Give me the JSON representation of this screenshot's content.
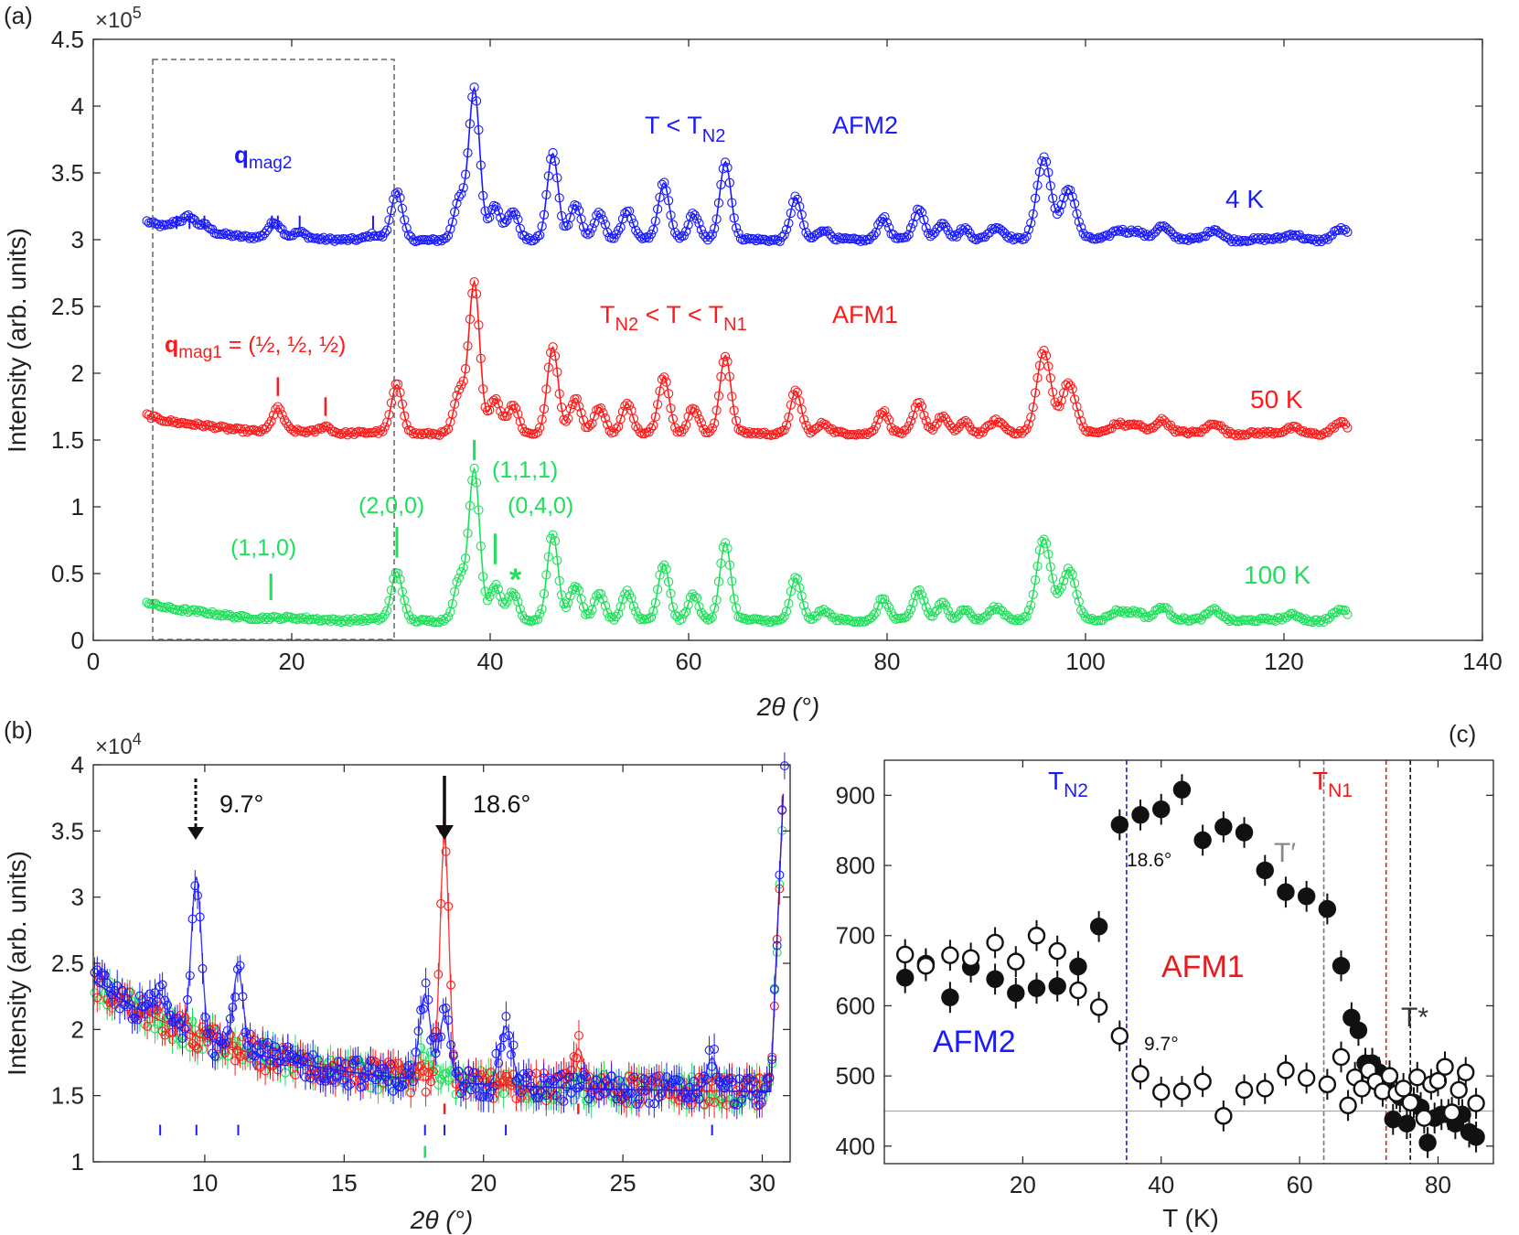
{
  "chart_data": [
    {
      "panel": "(a)",
      "type": "scatter",
      "xlabel": "2θ (°)",
      "ylabel": "Intensity (arb. units)",
      "y_multiplier": "×10",
      "y_multiplier_exp": "5",
      "xlim": [
        0,
        140
      ],
      "ylim": [
        0,
        4.5
      ],
      "xticks": [
        0,
        20,
        40,
        60,
        80,
        100,
        120,
        140
      ],
      "yticks": [
        0,
        0.5,
        1,
        1.5,
        2,
        2.5,
        3,
        3.5,
        4,
        4.5
      ],
      "series": [
        {
          "name": "4 K",
          "color": "#1a1aff",
          "baseline": 3.0,
          "offset": 2.85
        },
        {
          "name": "50 K",
          "color": "#ff1a1a",
          "baseline": 1.55,
          "offset": 1.4
        },
        {
          "name": "100 K",
          "color": "#1ee05a",
          "baseline": 0.15,
          "offset": 0.0
        }
      ],
      "peaks": [
        {
          "x": 30.6,
          "h": 0.36
        },
        {
          "x": 36.9,
          "h": 0.3
        },
        {
          "x": 38.4,
          "h": 1.12
        },
        {
          "x": 40.5,
          "h": 0.26
        },
        {
          "x": 42.3,
          "h": 0.22
        },
        {
          "x": 46.3,
          "h": 0.64
        },
        {
          "x": 48.6,
          "h": 0.26
        },
        {
          "x": 51.0,
          "h": 0.2
        },
        {
          "x": 53.8,
          "h": 0.22
        },
        {
          "x": 57.5,
          "h": 0.42
        },
        {
          "x": 60.5,
          "h": 0.2
        },
        {
          "x": 63.7,
          "h": 0.58
        },
        {
          "x": 70.8,
          "h": 0.32
        },
        {
          "x": 73.6,
          "h": 0.07
        },
        {
          "x": 79.6,
          "h": 0.17
        },
        {
          "x": 83.2,
          "h": 0.22
        },
        {
          "x": 85.6,
          "h": 0.13
        },
        {
          "x": 87.8,
          "h": 0.09
        },
        {
          "x": 91.0,
          "h": 0.09
        },
        {
          "x": 95.8,
          "h": 0.62
        },
        {
          "x": 98.3,
          "h": 0.38
        },
        {
          "x": 103.3,
          "h": 0.07
        },
        {
          "x": 105.1,
          "h": 0.07
        },
        {
          "x": 107.7,
          "h": 0.1
        },
        {
          "x": 113.0,
          "h": 0.08
        },
        {
          "x": 121.0,
          "h": 0.04
        },
        {
          "x": 125.7,
          "h": 0.08
        }
      ],
      "magnetic_peaks_50K": [
        {
          "x": 18.6,
          "h": 0.17
        },
        {
          "x": 23.4,
          "h": 0.05
        }
      ],
      "magnetic_peaks_4K": [
        {
          "x": 8.4,
          "h": 0.05
        },
        {
          "x": 9.7,
          "h": 0.1
        },
        {
          "x": 11.2,
          "h": 0.05
        },
        {
          "x": 18.0,
          "h": 0.07
        },
        {
          "x": 18.6,
          "h": 0.06
        },
        {
          "x": 20.8,
          "h": 0.04
        },
        {
          "x": 28.2,
          "h": 0.03
        }
      ],
      "ticks_4K": [
        8.4,
        9.7,
        11.2,
        18.0,
        18.6,
        20.8,
        28.2
      ],
      "ticks_50K": [
        18.6,
        23.4
      ],
      "ticks_100K": [
        {
          "x": 17.9,
          "label": "(1,1,0)"
        },
        {
          "x": 30.6,
          "label": "(2,0,0)"
        },
        {
          "x": 38.4,
          "label": "(1,1,1)"
        },
        {
          "x": 40.5,
          "label": "(0,4,0)"
        }
      ],
      "annotations": {
        "panel_label": "(a)",
        "t_lt_tn2_main": "T < T",
        "t_lt_tn2_sub": "N2",
        "afm2": "AFM2",
        "temp_4k": "4 K",
        "qmag2_main": "q",
        "qmag2_sub": "mag2",
        "tn2_sym": "T",
        "tn2_sub": "N2",
        "tn2_mid": " < T < T",
        "tn1_sub": "N1",
        "afm1": "AFM1",
        "qmag1_main": "q",
        "qmag1_sub": "mag1",
        "qmag1_val": " = (½, ½, ½)",
        "temp_50k": "50 K",
        "hkl_111": "(1,1,1)",
        "hkl_200": "(2,0,0)",
        "hkl_040": "(0,4,0)",
        "hkl_110": "(1,1,0)",
        "star": "*",
        "temp_100k": "100 K"
      }
    },
    {
      "panel": "(b)",
      "type": "scatter",
      "xlabel": "2θ (°)",
      "ylabel": "Intensity (arb. units)",
      "y_multiplier": "×10",
      "y_multiplier_exp": "4",
      "xlim": [
        6,
        31
      ],
      "ylim": [
        1,
        4
      ],
      "xticks": [
        10,
        15,
        20,
        25,
        30
      ],
      "yticks": [
        1,
        1.5,
        2,
        2.5,
        3,
        3.5,
        4
      ],
      "series": [
        {
          "name": "4 K",
          "color": "#1a1aff"
        },
        {
          "name": "50 K",
          "color": "#ff1a1a"
        },
        {
          "name": "100 K",
          "color": "#1ee05a"
        }
      ],
      "ticks_blue": [
        8.4,
        9.7,
        11.2,
        17.9,
        18.6,
        20.8,
        28.2
      ],
      "ticks_red": [
        18.6,
        23.4
      ],
      "ticks_green": [
        17.9
      ],
      "annotations": {
        "panel_label": "(b)",
        "arrow1": "9.7°",
        "arrow2": "18.6°"
      }
    },
    {
      "panel": "(c)",
      "type": "scatter",
      "xlabel": "T (K)",
      "ylabel": "",
      "xlim": [
        0,
        88
      ],
      "ylim": [
        375,
        950
      ],
      "xticks": [
        20,
        40,
        60,
        80
      ],
      "yticks": [
        400,
        500,
        600,
        700,
        800,
        900
      ],
      "hline": 450,
      "vlines": [
        {
          "x": 35,
          "color": "#1a1aff"
        },
        {
          "x": 63.5,
          "color": "#777777"
        },
        {
          "x": 72.5,
          "color": "#e81a1a"
        },
        {
          "x": 76,
          "color": "#111111"
        }
      ],
      "series": [
        {
          "name": "18.6°",
          "filled": true,
          "points": [
            [
              3,
              640
            ],
            [
              6,
              660
            ],
            [
              9.5,
              612
            ],
            [
              12.5,
              655
            ],
            [
              16,
              638
            ],
            [
              19,
              618
            ],
            [
              22,
              625
            ],
            [
              25,
              628
            ],
            [
              28,
              656
            ],
            [
              31,
              713
            ],
            [
              34,
              858
            ],
            [
              37,
              872
            ],
            [
              40,
              880
            ],
            [
              43,
              908
            ],
            [
              46,
              836
            ],
            [
              49,
              855
            ],
            [
              52,
              847
            ],
            [
              55,
              793
            ],
            [
              58,
              762
            ],
            [
              61,
              756
            ],
            [
              64,
              738
            ],
            [
              66,
              657
            ],
            [
              67.5,
              583
            ],
            [
              68.5,
              565
            ],
            [
              69.5,
              518
            ],
            [
              70.5,
              518
            ],
            [
              71.5,
              505
            ],
            [
              72.5,
              490
            ],
            [
              73.5,
              438
            ],
            [
              74.5,
              470
            ],
            [
              75.5,
              432
            ],
            [
              76.5,
              462
            ],
            [
              77.5,
              455
            ],
            [
              78.5,
              405
            ],
            [
              79.5,
              440
            ],
            [
              80.5,
              445
            ],
            [
              81.5,
              445
            ],
            [
              82.5,
              432
            ],
            [
              83.5,
              445
            ],
            [
              84.5,
              420
            ],
            [
              85.5,
              413
            ]
          ]
        },
        {
          "name": "9.7°",
          "filled": false,
          "points": [
            [
              3,
              673
            ],
            [
              6,
              657
            ],
            [
              9.5,
              672
            ],
            [
              12.5,
              668
            ],
            [
              16,
              690
            ],
            [
              19,
              663
            ],
            [
              22,
              700
            ],
            [
              25,
              678
            ],
            [
              28,
              622
            ],
            [
              31,
              598
            ],
            [
              34,
              557
            ],
            [
              37,
              503
            ],
            [
              40,
              477
            ],
            [
              43,
              478
            ],
            [
              46,
              492
            ],
            [
              49,
              443
            ],
            [
              52,
              480
            ],
            [
              55,
              482
            ],
            [
              58,
              508
            ],
            [
              61,
              497
            ],
            [
              64,
              488
            ],
            [
              66,
              527
            ],
            [
              67,
              458
            ],
            [
              68,
              498
            ],
            [
              69,
              482
            ],
            [
              70,
              508
            ],
            [
              71,
              492
            ],
            [
              72,
              478
            ],
            [
              73,
              500
            ],
            [
              74,
              475
            ],
            [
              75,
              482
            ],
            [
              76,
              462
            ],
            [
              77,
              498
            ],
            [
              78,
              440
            ],
            [
              79,
              488
            ],
            [
              80,
              493
            ],
            [
              81,
              513
            ],
            [
              82,
              448
            ],
            [
              83,
              480
            ],
            [
              84,
              505
            ],
            [
              85.5,
              461
            ]
          ]
        }
      ],
      "annotations": {
        "panel_label": "(c)",
        "tn2_sym": "T",
        "tn2_sub": "N2",
        "tn1_sym": "T",
        "tn1_sub": "N1",
        "tprime": "T′",
        "tstar": "T*",
        "label_186": "18.6°",
        "label_97": "9.7°",
        "afm1": "AFM1",
        "afm2": "AFM2"
      }
    }
  ]
}
